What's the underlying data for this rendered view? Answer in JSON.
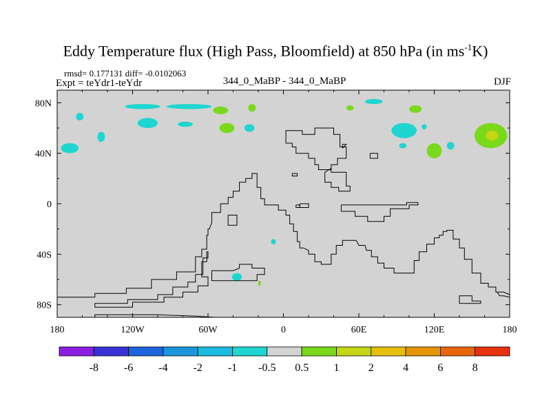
{
  "chart_data": {
    "type": "map-contour",
    "title_main": "Eddy Temperature flux (High Pass, Bloomfield) at 850 hPa (in ms",
    "title_sup": "-1",
    "title_end": "K)",
    "stats_text": "rmsd= 0.177131 diff= -0.0102063",
    "expt_text": "Expt = teYdr1-teYdr",
    "subtitle": "344_0_MaBP - 344_0_MaBP",
    "season": "DJF",
    "xlim": [
      -180,
      180
    ],
    "ylim": [
      -90,
      90
    ],
    "x_ticks": [
      {
        "value": -180,
        "label": "180"
      },
      {
        "value": -120,
        "label": "120W"
      },
      {
        "value": -60,
        "label": "60W"
      },
      {
        "value": 0,
        "label": "0"
      },
      {
        "value": 60,
        "label": "60E"
      },
      {
        "value": 120,
        "label": "120E"
      },
      {
        "value": 180,
        "label": "180"
      }
    ],
    "y_ticks": [
      {
        "value": 80,
        "label": "80N"
      },
      {
        "value": 40,
        "label": "40N"
      },
      {
        "value": 0,
        "label": "0"
      },
      {
        "value": -40,
        "label": "40S"
      },
      {
        "value": -80,
        "label": "80S"
      }
    ],
    "colorbar": {
      "colors": [
        "#8b1fe0",
        "#3a32d6",
        "#1e64dc",
        "#1b96dc",
        "#1cbce0",
        "#1ed6cf",
        "#d3d3d3",
        "#7ad91a",
        "#c4d614",
        "#e6be0c",
        "#e6940a",
        "#e8660c",
        "#e4330e"
      ],
      "labels": [
        "-8",
        "-6",
        "-4",
        "-2",
        "-1",
        "-0.5",
        "0.5",
        "1",
        "2",
        "4",
        "6",
        "8"
      ]
    },
    "anomalies": [
      {
        "lon": -162,
        "lat": 69,
        "r_lon": 3,
        "r_lat": 3,
        "level": "-0.5"
      },
      {
        "lon": -112,
        "lat": 77,
        "r_lon": 14,
        "r_lat": 2,
        "level": "-0.5"
      },
      {
        "lon": -75,
        "lat": 77,
        "r_lon": 18,
        "r_lat": 2,
        "level": "-0.5"
      },
      {
        "lon": -108,
        "lat": 64,
        "r_lon": 8,
        "r_lat": 4,
        "level": "-0.5"
      },
      {
        "lon": -78,
        "lat": 63,
        "r_lon": 6,
        "r_lat": 2,
        "level": "-0.5"
      },
      {
        "lon": -27,
        "lat": 60,
        "r_lon": 4,
        "r_lat": 3,
        "level": "-0.5"
      },
      {
        "lon": -170,
        "lat": 44,
        "r_lon": 7,
        "r_lat": 4,
        "level": "-0.5"
      },
      {
        "lon": -145,
        "lat": 53,
        "r_lon": 3,
        "r_lat": 4,
        "level": "-0.5"
      },
      {
        "lon": 96,
        "lat": 58,
        "r_lon": 10,
        "r_lat": 6,
        "level": "-0.5"
      },
      {
        "lon": 133,
        "lat": 46,
        "r_lon": 3,
        "r_lat": 3,
        "level": "-0.5"
      },
      {
        "lon": 112,
        "lat": 61,
        "r_lon": 2,
        "r_lat": 2,
        "level": "-0.5"
      },
      {
        "lon": 72,
        "lat": 81,
        "r_lon": 7,
        "r_lat": 2,
        "level": "-0.5"
      },
      {
        "lon": 95,
        "lat": 46,
        "r_lon": 3,
        "r_lat": 2,
        "level": "-0.5"
      },
      {
        "lon": -37,
        "lat": -58,
        "r_lon": 4,
        "r_lat": 3,
        "level": "-0.5"
      },
      {
        "lon": -8,
        "lat": -30,
        "r_lon": 2,
        "r_lat": 2,
        "level": "-0.5"
      },
      {
        "lon": -50,
        "lat": 74,
        "r_lon": 6,
        "r_lat": 3,
        "level": "0.5"
      },
      {
        "lon": -25,
        "lat": 76,
        "r_lon": 3,
        "r_lat": 3,
        "level": "0.5"
      },
      {
        "lon": -45,
        "lat": 60,
        "r_lon": 6,
        "r_lat": 4,
        "level": "0.5"
      },
      {
        "lon": 53,
        "lat": 76,
        "r_lon": 3,
        "r_lat": 2,
        "level": "0.5"
      },
      {
        "lon": 105,
        "lat": 75,
        "r_lon": 5,
        "r_lat": 3,
        "level": "0.5"
      },
      {
        "lon": 120,
        "lat": 42,
        "r_lon": 6,
        "r_lat": 6,
        "level": "0.5"
      },
      {
        "lon": 165,
        "lat": 54,
        "r_lon": 13,
        "r_lat": 10,
        "level": "0.5"
      },
      {
        "lon": 166,
        "lat": 54,
        "r_lon": 5,
        "r_lat": 4,
        "level": "1"
      },
      {
        "lon": -19,
        "lat": -63,
        "r_lon": 1,
        "r_lat": 2,
        "level": "0.5"
      }
    ],
    "coastlines": [
      [
        [
          -150,
          -90
        ],
        [
          -150,
          -88
        ],
        [
          -140,
          -88
        ],
        [
          -130,
          -88
        ],
        [
          -100,
          -88
        ],
        [
          -70,
          -89
        ],
        [
          -55,
          -90
        ]
      ],
      [
        [
          -180,
          -71
        ],
        [
          -180,
          -74
        ],
        [
          -150,
          -74
        ],
        [
          -150,
          -71
        ],
        [
          -125,
          -71
        ],
        [
          -125,
          -67
        ],
        [
          -105,
          -67
        ],
        [
          -105,
          -60
        ],
        [
          -85,
          -60
        ],
        [
          -85,
          -54
        ],
        [
          -70,
          -54
        ],
        [
          -70,
          -42
        ],
        [
          -65,
          -42
        ],
        [
          -65,
          -36
        ],
        [
          -61,
          -36
        ],
        [
          -61,
          -25
        ],
        [
          -60,
          -25
        ],
        [
          -60,
          -20
        ],
        [
          -59,
          -20
        ],
        [
          -57,
          -15
        ],
        [
          -57,
          -7
        ],
        [
          -50,
          -7
        ],
        [
          -50,
          0
        ],
        [
          -44,
          0
        ],
        [
          -44,
          5
        ],
        [
          -40,
          5
        ],
        [
          -40,
          10
        ],
        [
          -35,
          10
        ],
        [
          -35,
          17
        ],
        [
          -30,
          17
        ],
        [
          -30,
          20
        ],
        [
          -25,
          20
        ],
        [
          -25,
          24
        ],
        [
          -21,
          24
        ],
        [
          -21,
          13
        ],
        [
          -18,
          13
        ],
        [
          -18,
          4
        ],
        [
          -15,
          4
        ],
        [
          -15,
          -1
        ],
        [
          -4,
          -1
        ],
        [
          -4,
          -5
        ],
        [
          2,
          -5
        ],
        [
          2,
          -9
        ],
        [
          5,
          -9
        ],
        [
          5,
          -16
        ],
        [
          8,
          -16
        ],
        [
          8,
          -22
        ],
        [
          11,
          -22
        ],
        [
          11,
          -30
        ],
        [
          13,
          -30
        ],
        [
          13,
          -35
        ],
        [
          16,
          -35
        ],
        [
          20,
          -37
        ],
        [
          20,
          -40
        ],
        [
          25,
          -40
        ],
        [
          25,
          -46
        ],
        [
          30,
          -46
        ],
        [
          30,
          -48
        ],
        [
          38,
          -48
        ],
        [
          38,
          -40
        ],
        [
          42,
          -40
        ],
        [
          42,
          -33
        ],
        [
          47,
          -33
        ],
        [
          47,
          -29
        ],
        [
          58,
          -29
        ],
        [
          60,
          -33
        ],
        [
          65,
          -33
        ],
        [
          66,
          -37
        ],
        [
          70,
          -37
        ],
        [
          70,
          -42
        ],
        [
          75,
          -42
        ],
        [
          75,
          -47
        ],
        [
          80,
          -47
        ],
        [
          80,
          -51
        ],
        [
          88,
          -51
        ],
        [
          88,
          -55
        ],
        [
          104,
          -55
        ],
        [
          104,
          -45
        ],
        [
          108,
          -45
        ],
        [
          108,
          -38
        ],
        [
          114,
          -38
        ],
        [
          114,
          -32
        ],
        [
          120,
          -32
        ],
        [
          120,
          -27
        ],
        [
          124,
          -27
        ],
        [
          124,
          -25
        ],
        [
          127,
          -25
        ],
        [
          127,
          -22
        ],
        [
          130,
          -22
        ],
        [
          130,
          -21
        ],
        [
          135,
          -21
        ],
        [
          135,
          -28
        ],
        [
          140,
          -28
        ],
        [
          140,
          -35
        ],
        [
          144,
          -35
        ],
        [
          144,
          -44
        ],
        [
          150,
          -44
        ],
        [
          150,
          -55
        ],
        [
          157,
          -55
        ],
        [
          157,
          -63
        ],
        [
          163,
          -63
        ],
        [
          163,
          -66
        ],
        [
          169,
          -66
        ],
        [
          169,
          -70
        ],
        [
          175,
          -70
        ],
        [
          180,
          -72
        ]
      ],
      [
        [
          -150,
          -81
        ],
        [
          -150,
          -82
        ],
        [
          -120,
          -82
        ],
        [
          -120,
          -78
        ],
        [
          -95,
          -78
        ],
        [
          -95,
          -74
        ],
        [
          -80,
          -74
        ],
        [
          -80,
          -70
        ],
        [
          -68,
          -70
        ],
        [
          -68,
          -65
        ],
        [
          -60,
          -65
        ],
        [
          -60,
          -58
        ],
        [
          -65,
          -58
        ],
        [
          -65,
          -46
        ],
        [
          -61,
          -46
        ],
        [
          -61,
          -38
        ],
        [
          -60,
          -38
        ],
        [
          -60,
          -43
        ],
        [
          -64,
          -43
        ],
        [
          -64,
          -56
        ],
        [
          -70,
          -56
        ],
        [
          -70,
          -62
        ],
        [
          -76,
          -62
        ],
        [
          -76,
          -66
        ],
        [
          -88,
          -66
        ],
        [
          -88,
          -72
        ],
        [
          -100,
          -72
        ],
        [
          -100,
          -76
        ],
        [
          -124,
          -76
        ],
        [
          -124,
          -79
        ],
        [
          -150,
          -79
        ],
        [
          -150,
          -81
        ]
      ],
      [
        [
          -57,
          -58
        ],
        [
          -57,
          -53
        ],
        [
          -40,
          -53
        ],
        [
          -35,
          -51
        ],
        [
          -35,
          -48
        ],
        [
          -25,
          -48
        ],
        [
          -25,
          -51
        ],
        [
          -15,
          -51
        ],
        [
          -15,
          -56
        ],
        [
          -21,
          -56
        ],
        [
          -21,
          -61
        ],
        [
          -57,
          -61
        ],
        [
          -57,
          -58
        ]
      ],
      [
        [
          -44,
          -9
        ],
        [
          -44,
          -17
        ],
        [
          -37,
          -17
        ],
        [
          -37,
          -9
        ],
        [
          -44,
          -9
        ]
      ],
      [
        [
          2,
          55
        ],
        [
          2,
          48
        ],
        [
          7,
          48
        ],
        [
          7,
          45
        ],
        [
          10,
          45
        ],
        [
          10,
          40
        ],
        [
          20,
          40
        ],
        [
          20,
          36
        ],
        [
          25,
          36
        ],
        [
          25,
          31
        ],
        [
          28,
          31
        ],
        [
          28,
          27
        ],
        [
          38,
          27
        ],
        [
          38,
          31
        ],
        [
          43,
          31
        ],
        [
          43,
          36
        ],
        [
          50,
          36
        ],
        [
          50,
          45
        ],
        [
          45,
          45
        ],
        [
          45,
          55
        ],
        [
          40,
          55
        ],
        [
          40,
          60
        ],
        [
          25,
          60
        ],
        [
          25,
          55
        ],
        [
          15,
          55
        ],
        [
          15,
          58
        ],
        [
          2,
          58
        ],
        [
          2,
          55
        ]
      ],
      [
        [
          7,
          24
        ],
        [
          7,
          22
        ],
        [
          11,
          22
        ],
        [
          11,
          24
        ],
        [
          7,
          24
        ]
      ],
      [
        [
          10,
          -1
        ],
        [
          10,
          -3
        ],
        [
          13,
          -3
        ],
        [
          13,
          -1
        ],
        [
          10,
          -1
        ]
      ],
      [
        [
          13,
          0
        ],
        [
          13,
          -3
        ],
        [
          20,
          -3
        ],
        [
          20,
          0
        ],
        [
          13,
          0
        ]
      ],
      [
        [
          33,
          25
        ],
        [
          33,
          17
        ],
        [
          38,
          17
        ],
        [
          38,
          13
        ],
        [
          44,
          13
        ],
        [
          44,
          10
        ],
        [
          53,
          10
        ],
        [
          53,
          14
        ],
        [
          50,
          14
        ],
        [
          50,
          20
        ],
        [
          50,
          25
        ],
        [
          38,
          25
        ],
        [
          38,
          28
        ],
        [
          33,
          25
        ]
      ],
      [
        [
          47,
          44
        ],
        [
          47,
          47
        ],
        [
          50,
          47
        ],
        [
          47,
          44
        ]
      ],
      [
        [
          46,
          -1
        ],
        [
          46,
          -6
        ],
        [
          57,
          -6
        ],
        [
          57,
          -10
        ],
        [
          67,
          -10
        ],
        [
          67,
          -14
        ],
        [
          80,
          -14
        ],
        [
          80,
          -10
        ],
        [
          85,
          -10
        ],
        [
          85,
          -4
        ],
        [
          100,
          -4
        ],
        [
          100,
          -1
        ],
        [
          107,
          -1
        ],
        [
          107,
          1
        ],
        [
          98,
          1
        ],
        [
          98,
          -1
        ],
        [
          46,
          -1
        ]
      ],
      [
        [
          69,
          40
        ],
        [
          69,
          36
        ],
        [
          75,
          36
        ],
        [
          75,
          40
        ],
        [
          69,
          40
        ]
      ],
      [
        [
          140,
          -76
        ],
        [
          140,
          -73
        ],
        [
          150,
          -73
        ],
        [
          150,
          -77
        ],
        [
          157,
          -77
        ],
        [
          157,
          -79
        ],
        [
          140,
          -79
        ],
        [
          140,
          -76
        ]
      ],
      [
        [
          170,
          -70
        ],
        [
          172,
          -73
        ],
        [
          175,
          -73
        ],
        [
          180,
          -74
        ]
      ]
    ]
  }
}
